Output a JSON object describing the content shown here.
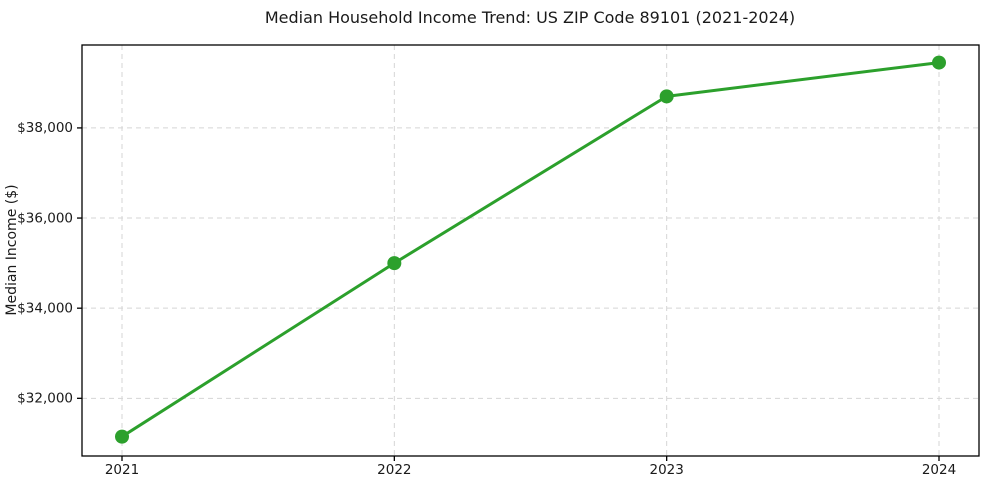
{
  "chart_data": {
    "type": "line",
    "title": "Median Household Income Trend: US ZIP Code 89101 (2021-2024)",
    "xlabel": "",
    "ylabel": "Median Income ($)",
    "categories": [
      "2021",
      "2022",
      "2023",
      "2024"
    ],
    "series": [
      {
        "name": "Median Household Income",
        "values": [
          31150,
          35000,
          38700,
          39450
        ]
      }
    ],
    "yticks": {
      "values": [
        32000,
        34000,
        36000,
        38000
      ],
      "labels": [
        "$32,000",
        "$34,000",
        "$36,000",
        "$38,000"
      ]
    },
    "ylim": [
      30720,
      39840
    ],
    "grid": true,
    "grid_style": "dashed",
    "legend": "none",
    "line_color": "#2ca02c",
    "grid_color": "#d5d5d5",
    "axis_color": "#000000",
    "text_color": "#1a1a1a",
    "background": "#ffffff"
  }
}
